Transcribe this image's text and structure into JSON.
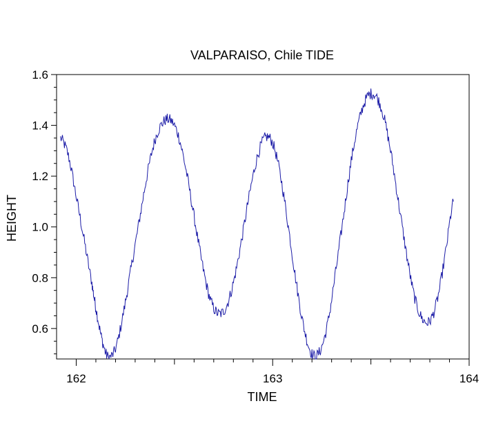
{
  "chart_data": {
    "type": "line",
    "title": "VALPARAISO, Chile TIDE",
    "xlabel": "TIME",
    "ylabel": "HEIGHT",
    "xlim": [
      161.9,
      164.0
    ],
    "ylim": [
      0.48,
      1.6
    ],
    "x_ticks": [
      162,
      163,
      164
    ],
    "x_tick_labels": [
      "162",
      "163",
      "164"
    ],
    "y_ticks": [
      0.6,
      0.8,
      1.0,
      1.2,
      1.4,
      1.6
    ],
    "y_tick_labels": [
      "0.6",
      "0.8",
      "1.0",
      "1.2",
      "1.4",
      "1.6"
    ],
    "grid": false,
    "series": [
      {
        "color": "#1a1aa6",
        "x": [
          161.92,
          161.96,
          162.0,
          162.04,
          162.08,
          162.1,
          162.13,
          162.16,
          162.2,
          162.24,
          162.28,
          162.32,
          162.36,
          162.4,
          162.44,
          162.48,
          162.52,
          162.56,
          162.6,
          162.64,
          162.68,
          162.72,
          162.76,
          162.8,
          162.84,
          162.88,
          162.92,
          162.96,
          163.0,
          163.04,
          163.08,
          163.12,
          163.16,
          163.2,
          163.24,
          163.28,
          163.32,
          163.36,
          163.4,
          163.44,
          163.48,
          163.52,
          163.56,
          163.6,
          163.64,
          163.68,
          163.72,
          163.76,
          163.8,
          163.84,
          163.88,
          163.92
        ],
        "y": [
          1.35,
          1.28,
          1.12,
          0.95,
          0.78,
          0.68,
          0.56,
          0.49,
          0.52,
          0.66,
          0.84,
          1.02,
          1.2,
          1.34,
          1.41,
          1.42,
          1.36,
          1.22,
          1.04,
          0.86,
          0.72,
          0.66,
          0.68,
          0.78,
          0.94,
          1.12,
          1.27,
          1.35,
          1.33,
          1.2,
          1.0,
          0.78,
          0.6,
          0.5,
          0.51,
          0.62,
          0.82,
          1.04,
          1.26,
          1.42,
          1.51,
          1.52,
          1.45,
          1.3,
          1.1,
          0.9,
          0.73,
          0.64,
          0.63,
          0.72,
          0.9,
          1.1
        ]
      }
    ]
  }
}
